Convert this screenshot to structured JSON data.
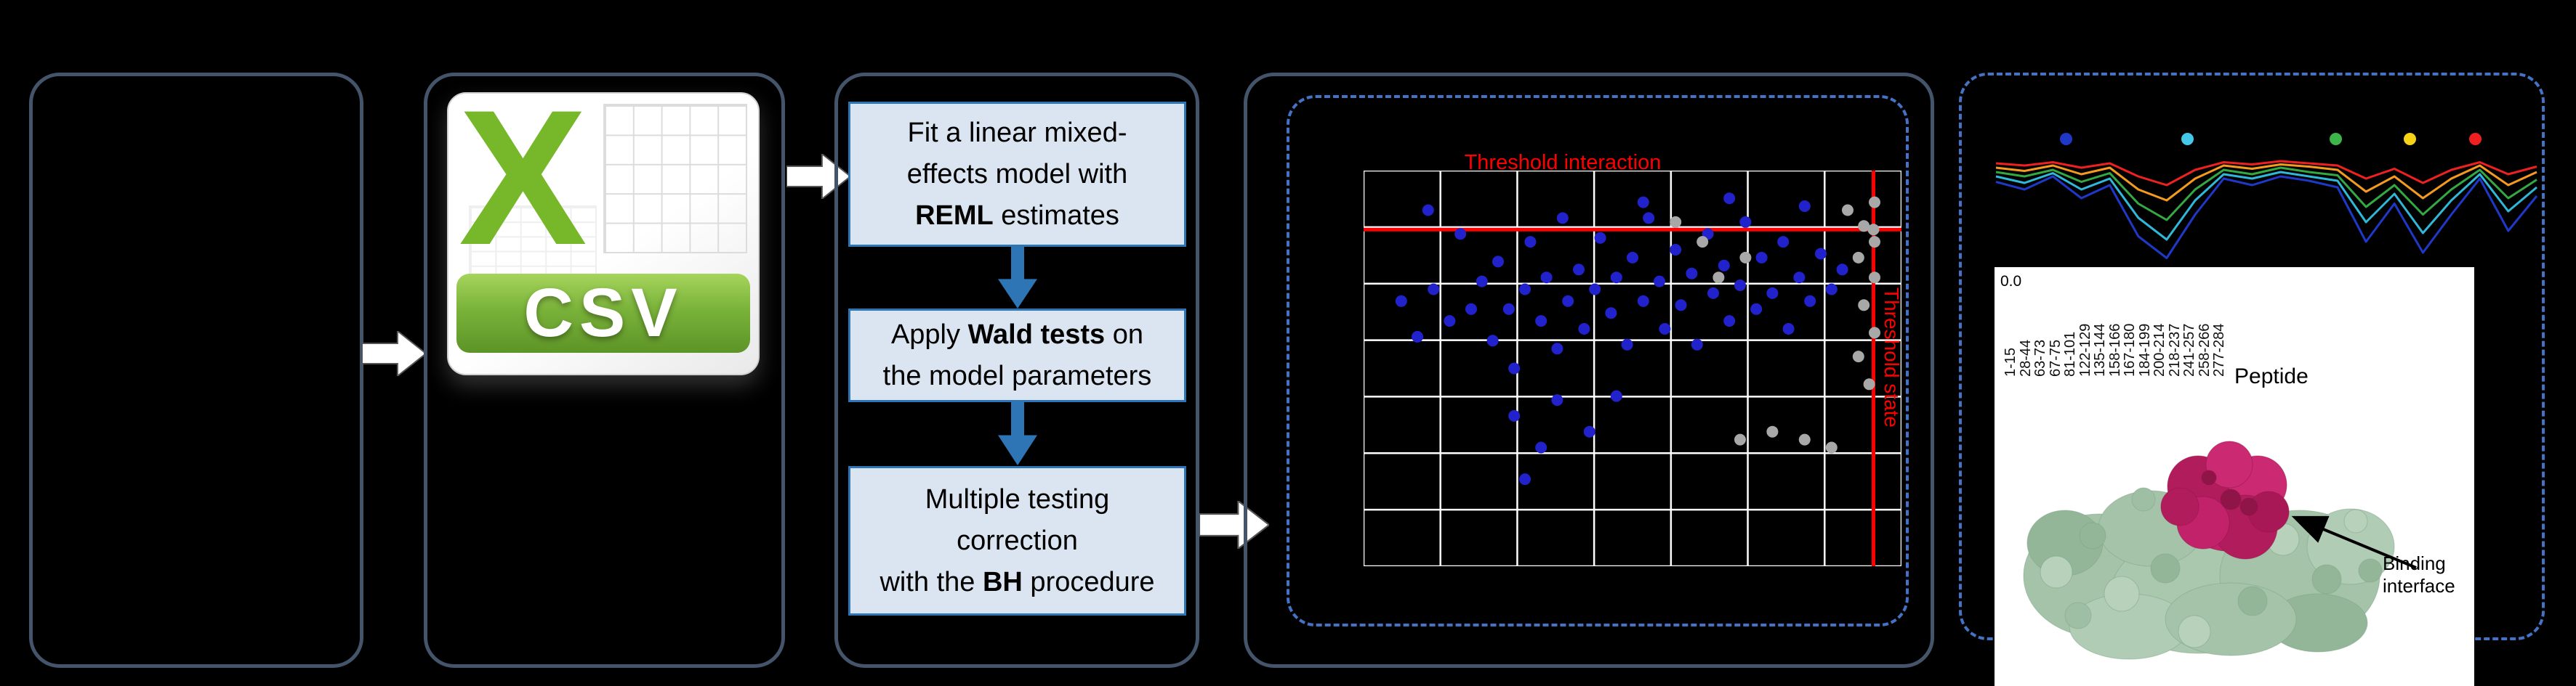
{
  "figure": {
    "csv_panel": {
      "x_letter": "X",
      "csv_label": "CSV"
    },
    "pipeline": {
      "steps": [
        {
          "segments": [
            {
              "t": "Fit a linear mixed-\neffects model with\n"
            },
            {
              "t": "REML",
              "b": true
            },
            {
              "t": " estimates"
            }
          ]
        },
        {
          "segments": [
            {
              "t": "Apply "
            },
            {
              "t": "Wald tests",
              "b": true
            },
            {
              "t": " on\nthe model parameters"
            }
          ]
        },
        {
          "segments": [
            {
              "t": "Multiple testing\ncorrection\nwith the "
            },
            {
              "t": "BH",
              "b": true
            },
            {
              "t": " procedure"
            }
          ]
        }
      ]
    },
    "epitope_panel": {
      "binding_interface_label": "Binding interface"
    }
  },
  "colors": {
    "background": "#000000",
    "panel_border": "#44546A",
    "dashed_border": "#4472C4",
    "step_fill": "#DBE5F1",
    "step_border": "#2E75B6",
    "arrow_blue": "#2E75B6",
    "threshold_red": "#FF0000",
    "csv_green": "#76B82A",
    "scatter_blue": "#2222CC",
    "scatter_gray": "#A8A8A8"
  },
  "chart_data": [
    {
      "type": "scatter",
      "grid": {
        "v_lines": 8,
        "h_lines": 8
      },
      "threshold_h_frac": 0.149,
      "threshold_v_frac": 0.948,
      "threshold_color": "#FF0000",
      "annotations": [
        {
          "text": "Threshold interaction"
        },
        {
          "text": "Threshold state"
        }
      ],
      "series": [
        {
          "name": "blue",
          "color": "#2222CC",
          "r": 8,
          "points": [
            [
              0.07,
              0.33
            ],
            [
              0.1,
              0.42
            ],
            [
              0.13,
              0.3
            ],
            [
              0.16,
              0.38
            ],
            [
              0.18,
              0.16
            ],
            [
              0.2,
              0.35
            ],
            [
              0.22,
              0.28
            ],
            [
              0.24,
              0.43
            ],
            [
              0.25,
              0.23
            ],
            [
              0.27,
              0.35
            ],
            [
              0.28,
              0.5
            ],
            [
              0.3,
              0.3
            ],
            [
              0.31,
              0.18
            ],
            [
              0.33,
              0.38
            ],
            [
              0.34,
              0.27
            ],
            [
              0.36,
              0.45
            ],
            [
              0.37,
              0.12
            ],
            [
              0.38,
              0.33
            ],
            [
              0.4,
              0.25
            ],
            [
              0.41,
              0.4
            ],
            [
              0.43,
              0.3
            ],
            [
              0.44,
              0.17
            ],
            [
              0.46,
              0.36
            ],
            [
              0.47,
              0.27
            ],
            [
              0.49,
              0.44
            ],
            [
              0.5,
              0.22
            ],
            [
              0.52,
              0.33
            ],
            [
              0.53,
              0.12
            ],
            [
              0.55,
              0.28
            ],
            [
              0.56,
              0.4
            ],
            [
              0.58,
              0.2
            ],
            [
              0.59,
              0.34
            ],
            [
              0.61,
              0.26
            ],
            [
              0.62,
              0.44
            ],
            [
              0.64,
              0.16
            ],
            [
              0.65,
              0.31
            ],
            [
              0.67,
              0.24
            ],
            [
              0.68,
              0.38
            ],
            [
              0.7,
              0.29
            ],
            [
              0.71,
              0.13
            ],
            [
              0.73,
              0.35
            ],
            [
              0.74,
              0.22
            ],
            [
              0.76,
              0.31
            ],
            [
              0.78,
              0.18
            ],
            [
              0.79,
              0.4
            ],
            [
              0.81,
              0.27
            ],
            [
              0.83,
              0.33
            ],
            [
              0.85,
              0.21
            ],
            [
              0.87,
              0.3
            ],
            [
              0.89,
              0.25
            ],
            [
              0.28,
              0.62
            ],
            [
              0.33,
              0.7
            ],
            [
              0.36,
              0.58
            ],
            [
              0.42,
              0.66
            ],
            [
              0.3,
              0.78
            ],
            [
              0.47,
              0.57
            ],
            [
              0.12,
              0.1
            ],
            [
              0.52,
              0.08
            ],
            [
              0.68,
              0.07
            ],
            [
              0.82,
              0.09
            ]
          ]
        },
        {
          "name": "gray",
          "color": "#A8A8A8",
          "r": 8,
          "points": [
            [
              0.9,
              0.1
            ],
            [
              0.93,
              0.14
            ],
            [
              0.95,
              0.08
            ],
            [
              0.92,
              0.22
            ],
            [
              0.95,
              0.27
            ],
            [
              0.93,
              0.34
            ],
            [
              0.95,
              0.41
            ],
            [
              0.92,
              0.47
            ],
            [
              0.94,
              0.54
            ],
            [
              0.95,
              0.18
            ],
            [
              0.948,
              0.149
            ],
            [
              0.63,
              0.18
            ],
            [
              0.66,
              0.27
            ],
            [
              0.71,
              0.22
            ],
            [
              0.58,
              0.13
            ],
            [
              0.7,
              0.68
            ],
            [
              0.76,
              0.66
            ],
            [
              0.82,
              0.68
            ],
            [
              0.87,
              0.7
            ]
          ]
        }
      ]
    },
    {
      "type": "line",
      "xlabel": "Peptide",
      "y_tick_label": "0.0",
      "x_tick_labels": [
        "1-15",
        "28-44",
        "63-73",
        "67-75",
        "81-101",
        "122-129",
        "135-144",
        "158-166",
        "167-180",
        "184-199",
        "200-214",
        "218-237",
        "241-257",
        "258-266",
        "277-284"
      ],
      "marker_dots": [
        {
          "x": 0.135,
          "color": "#2038C8"
        },
        {
          "x": 0.356,
          "color": "#45C8E8"
        },
        {
          "x": 0.626,
          "color": "#3CB54A"
        },
        {
          "x": 0.76,
          "color": "#F6D317"
        },
        {
          "x": 0.88,
          "color": "#EE2020"
        }
      ],
      "series": [
        {
          "name": "blue",
          "color": "#2038C8",
          "values": [
            0.75,
            0.68,
            0.8,
            0.6,
            0.72,
            0.25,
            0.05,
            0.45,
            0.78,
            0.72,
            0.8,
            0.76,
            0.7,
            0.2,
            0.55,
            0.1,
            0.45,
            0.78,
            0.3,
            0.62
          ]
        },
        {
          "name": "cyan",
          "color": "#30B8D8",
          "values": [
            0.8,
            0.74,
            0.83,
            0.68,
            0.78,
            0.42,
            0.22,
            0.58,
            0.82,
            0.78,
            0.84,
            0.8,
            0.76,
            0.38,
            0.64,
            0.28,
            0.58,
            0.82,
            0.48,
            0.7
          ]
        },
        {
          "name": "green",
          "color": "#33A843",
          "values": [
            0.84,
            0.8,
            0.86,
            0.75,
            0.83,
            0.55,
            0.4,
            0.68,
            0.86,
            0.82,
            0.88,
            0.84,
            0.81,
            0.52,
            0.72,
            0.45,
            0.68,
            0.86,
            0.6,
            0.77
          ]
        },
        {
          "name": "orange",
          "color": "#F59A20",
          "values": [
            0.88,
            0.85,
            0.9,
            0.82,
            0.88,
            0.68,
            0.58,
            0.78,
            0.9,
            0.87,
            0.91,
            0.89,
            0.86,
            0.66,
            0.8,
            0.6,
            0.78,
            0.9,
            0.72,
            0.84
          ]
        },
        {
          "name": "red",
          "color": "#EE2020",
          "values": [
            0.92,
            0.9,
            0.93,
            0.88,
            0.92,
            0.8,
            0.72,
            0.86,
            0.93,
            0.91,
            0.94,
            0.92,
            0.9,
            0.78,
            0.87,
            0.74,
            0.86,
            0.93,
            0.82,
            0.89
          ]
        }
      ]
    }
  ]
}
